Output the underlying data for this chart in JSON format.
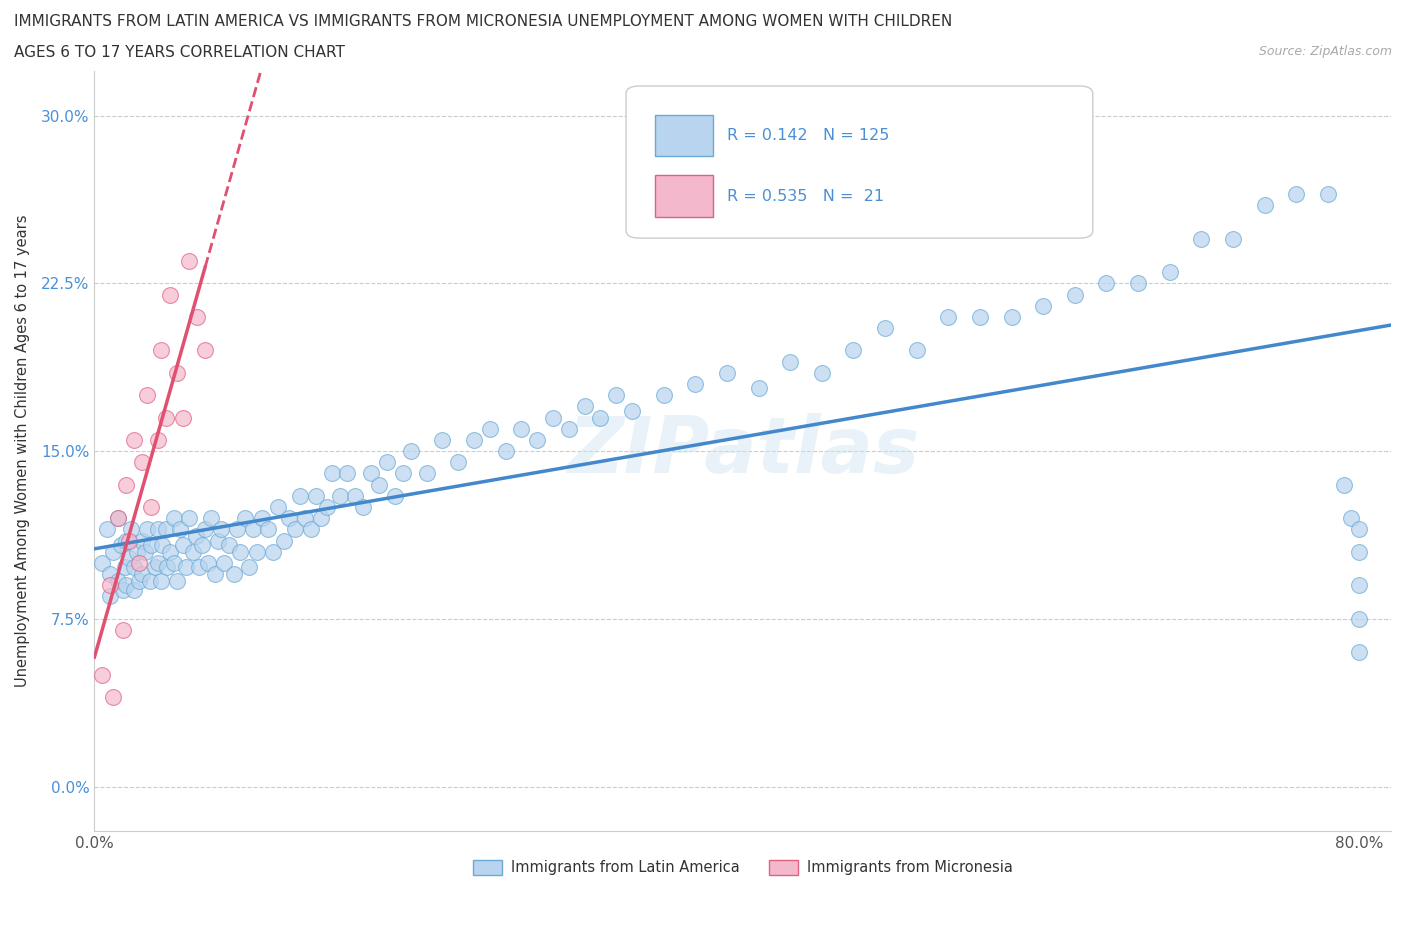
{
  "title_line1": "IMMIGRANTS FROM LATIN AMERICA VS IMMIGRANTS FROM MICRONESIA UNEMPLOYMENT AMONG WOMEN WITH CHILDREN",
  "title_line2": "AGES 6 TO 17 YEARS CORRELATION CHART",
  "source_text": "Source: ZipAtlas.com",
  "ylabel": "Unemployment Among Women with Children Ages 6 to 17 years",
  "xlim": [
    0.0,
    0.82
  ],
  "ylim": [
    -0.02,
    0.32
  ],
  "yticks": [
    0.0,
    0.075,
    0.15,
    0.225,
    0.3
  ],
  "ytick_labels": [
    "0.0%",
    "7.5%",
    "15.0%",
    "22.5%",
    "30.0%"
  ],
  "xtick_positions": [
    0.0,
    0.1,
    0.2,
    0.3,
    0.4,
    0.5,
    0.6,
    0.7,
    0.8
  ],
  "xtick_labels": [
    "0.0%",
    "",
    "",
    "",
    "",
    "",
    "",
    "",
    "80.0%"
  ],
  "color_latin": "#b8d4ee",
  "color_latin_edge": "#6aaad4",
  "color_micronesia": "#f4b8cc",
  "color_micronesia_edge": "#e06080",
  "color_trendline_latin": "#4488cc",
  "color_trendline_micronesia": "#e05070",
  "r_latin": 0.142,
  "n_latin": 125,
  "r_micronesia": 0.535,
  "n_micronesia": 21,
  "watermark": "ZIPatlas",
  "legend_labels": [
    "Immigrants from Latin America",
    "Immigrants from Micronesia"
  ],
  "latin_x": [
    0.005,
    0.008,
    0.01,
    0.01,
    0.012,
    0.015,
    0.015,
    0.017,
    0.018,
    0.019,
    0.02,
    0.02,
    0.022,
    0.023,
    0.025,
    0.025,
    0.027,
    0.028,
    0.03,
    0.03,
    0.032,
    0.033,
    0.035,
    0.036,
    0.038,
    0.04,
    0.04,
    0.042,
    0.043,
    0.045,
    0.046,
    0.048,
    0.05,
    0.05,
    0.052,
    0.054,
    0.056,
    0.058,
    0.06,
    0.062,
    0.064,
    0.066,
    0.068,
    0.07,
    0.072,
    0.074,
    0.076,
    0.078,
    0.08,
    0.082,
    0.085,
    0.088,
    0.09,
    0.092,
    0.095,
    0.098,
    0.1,
    0.103,
    0.106,
    0.11,
    0.113,
    0.116,
    0.12,
    0.123,
    0.127,
    0.13,
    0.133,
    0.137,
    0.14,
    0.143,
    0.147,
    0.15,
    0.155,
    0.16,
    0.165,
    0.17,
    0.175,
    0.18,
    0.185,
    0.19,
    0.195,
    0.2,
    0.21,
    0.22,
    0.23,
    0.24,
    0.25,
    0.26,
    0.27,
    0.28,
    0.29,
    0.3,
    0.31,
    0.32,
    0.33,
    0.34,
    0.36,
    0.38,
    0.4,
    0.42,
    0.44,
    0.46,
    0.48,
    0.5,
    0.52,
    0.54,
    0.56,
    0.58,
    0.6,
    0.62,
    0.64,
    0.66,
    0.68,
    0.7,
    0.72,
    0.74,
    0.76,
    0.78,
    0.79,
    0.795,
    0.8,
    0.8,
    0.8,
    0.8,
    0.8
  ],
  "latin_y": [
    0.1,
    0.115,
    0.095,
    0.085,
    0.105,
    0.12,
    0.092,
    0.108,
    0.088,
    0.098,
    0.11,
    0.09,
    0.102,
    0.115,
    0.088,
    0.098,
    0.105,
    0.092,
    0.11,
    0.095,
    0.105,
    0.115,
    0.092,
    0.108,
    0.098,
    0.115,
    0.1,
    0.092,
    0.108,
    0.115,
    0.098,
    0.105,
    0.12,
    0.1,
    0.092,
    0.115,
    0.108,
    0.098,
    0.12,
    0.105,
    0.112,
    0.098,
    0.108,
    0.115,
    0.1,
    0.12,
    0.095,
    0.11,
    0.115,
    0.1,
    0.108,
    0.095,
    0.115,
    0.105,
    0.12,
    0.098,
    0.115,
    0.105,
    0.12,
    0.115,
    0.105,
    0.125,
    0.11,
    0.12,
    0.115,
    0.13,
    0.12,
    0.115,
    0.13,
    0.12,
    0.125,
    0.14,
    0.13,
    0.14,
    0.13,
    0.125,
    0.14,
    0.135,
    0.145,
    0.13,
    0.14,
    0.15,
    0.14,
    0.155,
    0.145,
    0.155,
    0.16,
    0.15,
    0.16,
    0.155,
    0.165,
    0.16,
    0.17,
    0.165,
    0.175,
    0.168,
    0.175,
    0.18,
    0.185,
    0.178,
    0.19,
    0.185,
    0.195,
    0.205,
    0.195,
    0.21,
    0.21,
    0.21,
    0.215,
    0.22,
    0.225,
    0.225,
    0.23,
    0.245,
    0.245,
    0.26,
    0.265,
    0.265,
    0.135,
    0.12,
    0.115,
    0.105,
    0.09,
    0.075,
    0.06
  ],
  "micronesia_x": [
    0.005,
    0.01,
    0.012,
    0.015,
    0.018,
    0.02,
    0.022,
    0.025,
    0.028,
    0.03,
    0.033,
    0.036,
    0.04,
    0.042,
    0.045,
    0.048,
    0.052,
    0.056,
    0.06,
    0.065,
    0.07
  ],
  "micronesia_y": [
    0.05,
    0.09,
    0.04,
    0.12,
    0.07,
    0.135,
    0.11,
    0.155,
    0.1,
    0.145,
    0.175,
    0.125,
    0.155,
    0.195,
    0.165,
    0.22,
    0.185,
    0.165,
    0.235,
    0.21,
    0.195
  ]
}
